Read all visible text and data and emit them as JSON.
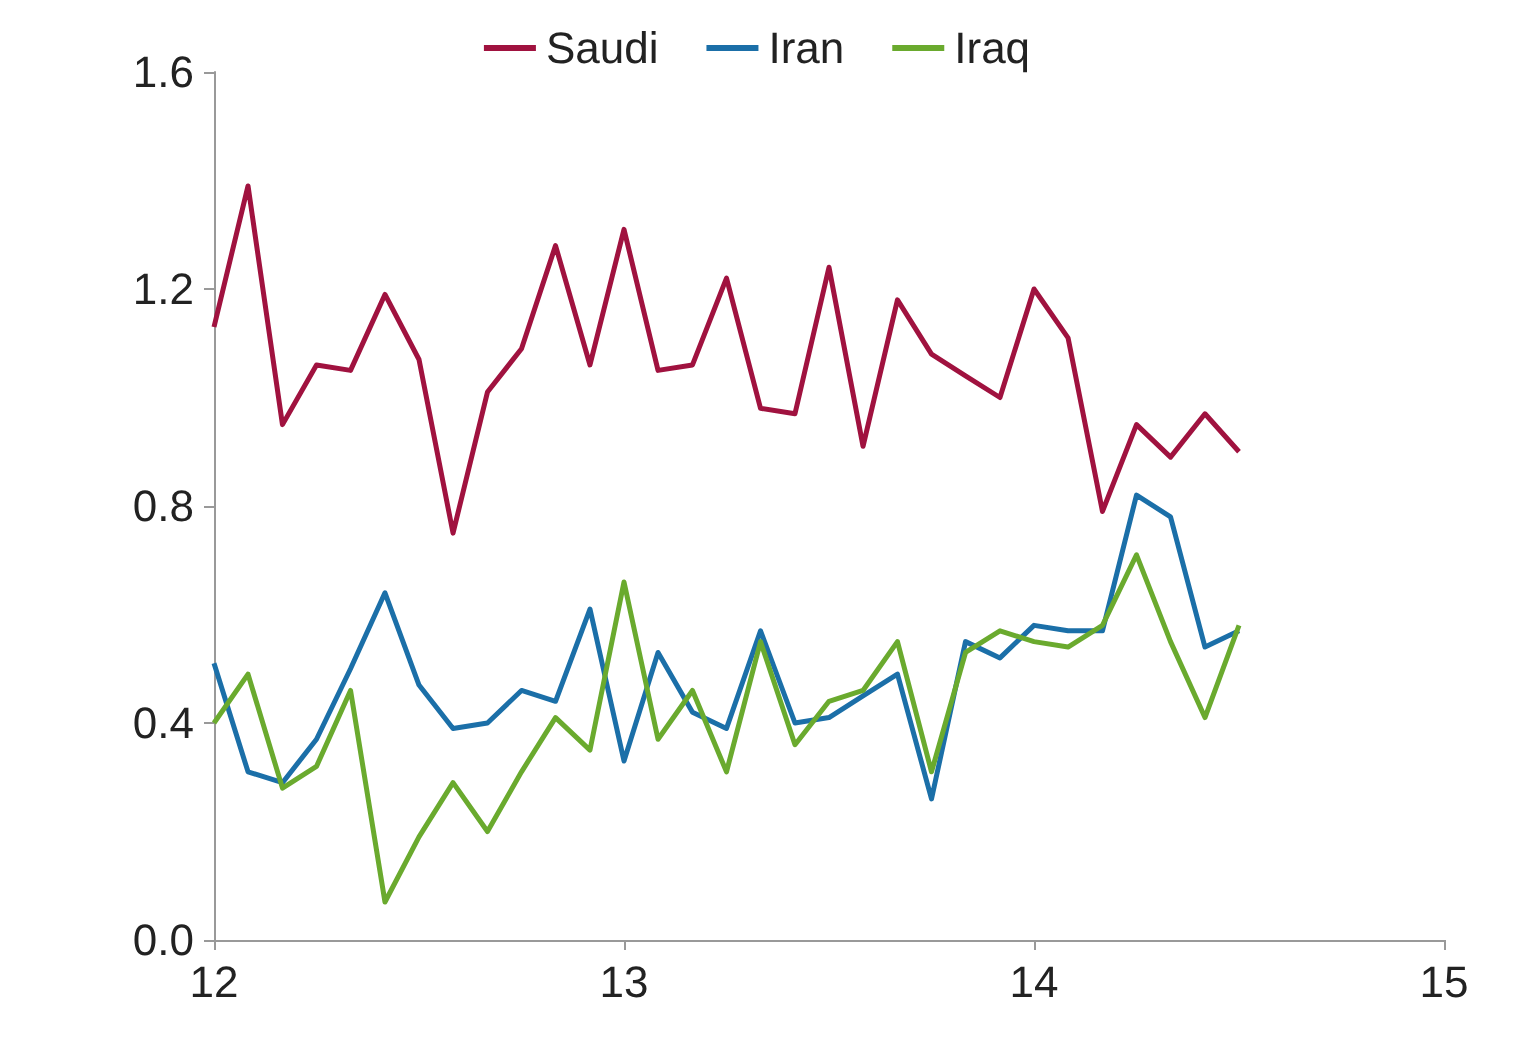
{
  "chart_data": {
    "type": "line",
    "x": [
      12,
      12.083,
      12.167,
      12.25,
      12.333,
      12.417,
      12.5,
      12.583,
      12.667,
      12.75,
      12.833,
      12.917,
      13,
      13.083,
      13.167,
      13.25,
      13.333,
      13.417,
      13.5,
      13.583,
      13.667,
      13.75,
      13.833,
      13.917,
      14,
      14.083,
      14.167,
      14.25,
      14.333,
      14.417,
      14.5
    ],
    "series": [
      {
        "name": "Saudi",
        "color": "#a0123f",
        "values": [
          1.13,
          1.39,
          0.95,
          1.06,
          1.05,
          1.19,
          1.07,
          0.75,
          1.01,
          1.09,
          1.28,
          1.06,
          1.31,
          1.05,
          1.06,
          1.22,
          0.98,
          0.97,
          1.24,
          0.91,
          1.18,
          1.08,
          1.04,
          1.0,
          1.2,
          1.11,
          0.79,
          0.95,
          0.89,
          0.97,
          0.9
        ]
      },
      {
        "name": "Iran",
        "color": "#1b6fa8",
        "values": [
          0.51,
          0.31,
          0.29,
          0.37,
          0.5,
          0.64,
          0.47,
          0.39,
          0.4,
          0.46,
          0.44,
          0.61,
          0.33,
          0.53,
          0.42,
          0.39,
          0.57,
          0.4,
          0.41,
          0.45,
          0.49,
          0.26,
          0.55,
          0.52,
          0.58,
          0.57,
          0.57,
          0.82,
          0.78,
          0.54,
          0.57
        ]
      },
      {
        "name": "Iraq",
        "color": "#6aaa2e",
        "values": [
          0.4,
          0.49,
          0.28,
          0.32,
          0.46,
          0.07,
          0.19,
          0.29,
          0.2,
          0.31,
          0.41,
          0.35,
          0.66,
          0.37,
          0.46,
          0.31,
          0.55,
          0.36,
          0.44,
          0.46,
          0.55,
          0.31,
          0.53,
          0.57,
          0.55,
          0.54,
          0.58,
          0.71,
          0.55,
          0.41,
          0.58
        ]
      }
    ],
    "xlim": [
      12,
      15
    ],
    "xticks": [
      12,
      13,
      14,
      15
    ],
    "ylim": [
      0,
      1.6
    ],
    "yticks": [
      {
        "value": 0,
        "label": "0.0"
      },
      {
        "value": 0.4,
        "label": "0.4"
      },
      {
        "value": 0.8,
        "label": "0.8"
      },
      {
        "value": 1.2,
        "label": "1.2"
      },
      {
        "value": 1.6,
        "label": "1.6"
      }
    ],
    "grid": false,
    "legend": "top",
    "marker": "none",
    "line_style": "solid"
  }
}
